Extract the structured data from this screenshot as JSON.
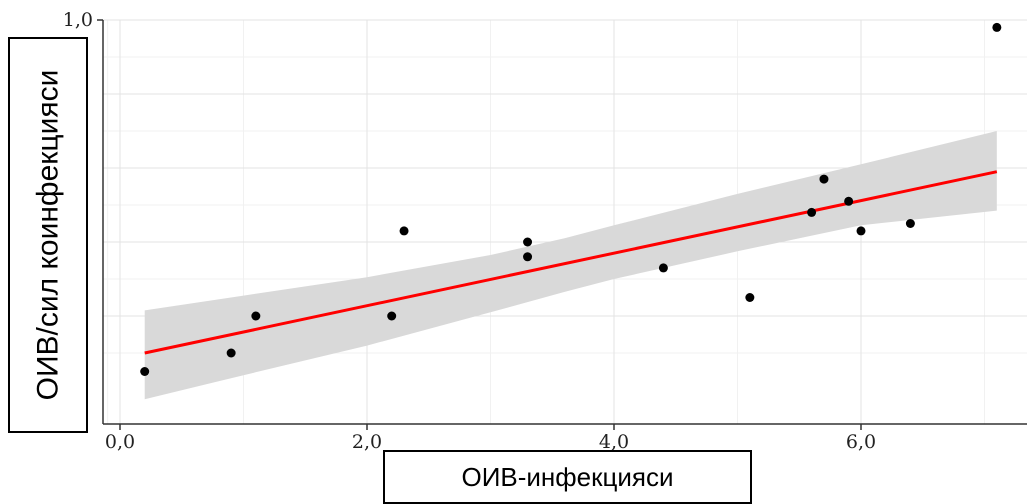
{
  "chart_data": {
    "type": "scatter",
    "xlabel": "ОИВ-инфекцияси",
    "ylabel": "ОИВ/сил коинфекцияси",
    "xlim": [
      -0.1,
      7.3
    ],
    "ylim": [
      0.0,
      1.0
    ],
    "x_ticks": [
      {
        "value": 0,
        "label": "0,0"
      },
      {
        "value": 2,
        "label": "2,0"
      },
      {
        "value": 4,
        "label": "4,0"
      },
      {
        "value": 6,
        "label": "6,0"
      }
    ],
    "y_ticks": [
      {
        "value": 1.0,
        "label": "1,0"
      }
    ],
    "y_gridlines": [
      0.2,
      0.4,
      0.6,
      0.8
    ],
    "points": [
      {
        "x": 0.2,
        "y": 0.05
      },
      {
        "x": 0.9,
        "y": 0.1
      },
      {
        "x": 1.1,
        "y": 0.2
      },
      {
        "x": 2.2,
        "y": 0.2
      },
      {
        "x": 2.3,
        "y": 0.43
      },
      {
        "x": 3.3,
        "y": 0.4
      },
      {
        "x": 3.3,
        "y": 0.36
      },
      {
        "x": 4.4,
        "y": 0.33
      },
      {
        "x": 5.1,
        "y": 0.25
      },
      {
        "x": 5.6,
        "y": 0.48
      },
      {
        "x": 5.7,
        "y": 0.57
      },
      {
        "x": 5.9,
        "y": 0.51
      },
      {
        "x": 6.0,
        "y": 0.43
      },
      {
        "x": 6.4,
        "y": 0.45
      },
      {
        "x": 7.1,
        "y": 0.98
      }
    ],
    "trend_line": {
      "x": [
        0.2,
        7.1
      ],
      "y": [
        0.1,
        0.59
      ],
      "color": "#ff0000"
    },
    "confidence_band": {
      "x": [
        0.2,
        1.0,
        2.0,
        3.0,
        3.6,
        4.0,
        5.0,
        6.0,
        7.1
      ],
      "upper": [
        0.215,
        0.255,
        0.305,
        0.365,
        0.41,
        0.445,
        0.53,
        0.61,
        0.7
      ],
      "lower": [
        -0.025,
        0.04,
        0.12,
        0.21,
        0.265,
        0.3,
        0.375,
        0.445,
        0.485
      ],
      "color": "#d9d9d9"
    },
    "grid": true,
    "point_color": "#000000"
  }
}
